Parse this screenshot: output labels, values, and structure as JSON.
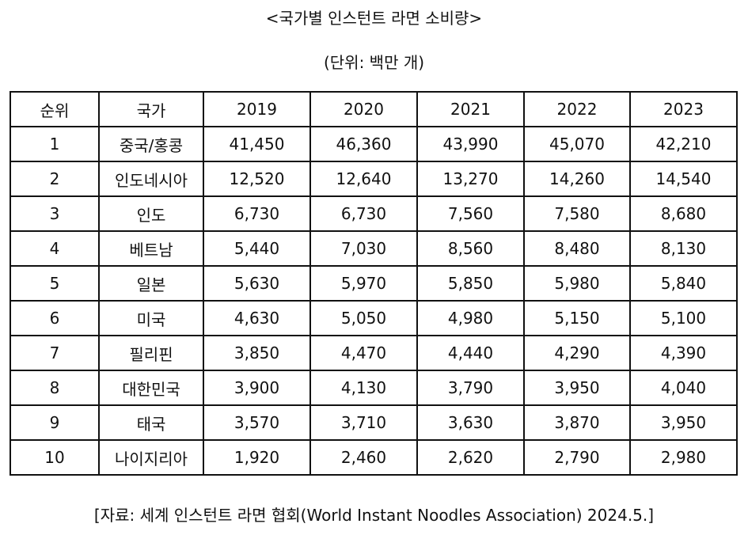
{
  "title": "<국가별 인스턴트 라면 소비량>",
  "unit": "(단위: 백만 개)",
  "table": {
    "headers": [
      "순위",
      "국가",
      "2019",
      "2020",
      "2021",
      "2022",
      "2023"
    ],
    "rows": [
      [
        "1",
        "중국/홍콩",
        "41,450",
        "46,360",
        "43,990",
        "45,070",
        "42,210"
      ],
      [
        "2",
        "인도네시아",
        "12,520",
        "12,640",
        "13,270",
        "14,260",
        "14,540"
      ],
      [
        "3",
        "인도",
        "6,730",
        "6,730",
        "7,560",
        "7,580",
        "8,680"
      ],
      [
        "4",
        "베트남",
        "5,440",
        "7,030",
        "8,560",
        "8,480",
        "8,130"
      ],
      [
        "5",
        "일본",
        "5,630",
        "5,970",
        "5,850",
        "5,980",
        "5,840"
      ],
      [
        "6",
        "미국",
        "4,630",
        "5,050",
        "4,980",
        "5,150",
        "5,100"
      ],
      [
        "7",
        "필리핀",
        "3,850",
        "4,470",
        "4,440",
        "4,290",
        "4,390"
      ],
      [
        "8",
        "대한민국",
        "3,900",
        "4,130",
        "3,790",
        "3,950",
        "4,040"
      ],
      [
        "9",
        "태국",
        "3,570",
        "3,710",
        "3,630",
        "3,870",
        "3,950"
      ],
      [
        "10",
        "나이지리아",
        "1,920",
        "2,460",
        "2,620",
        "2,790",
        "2,980"
      ]
    ]
  },
  "source": "[자료: 세계 인스턴트 라면 협회(World Instant Noodles Association) 2024.5.]"
}
